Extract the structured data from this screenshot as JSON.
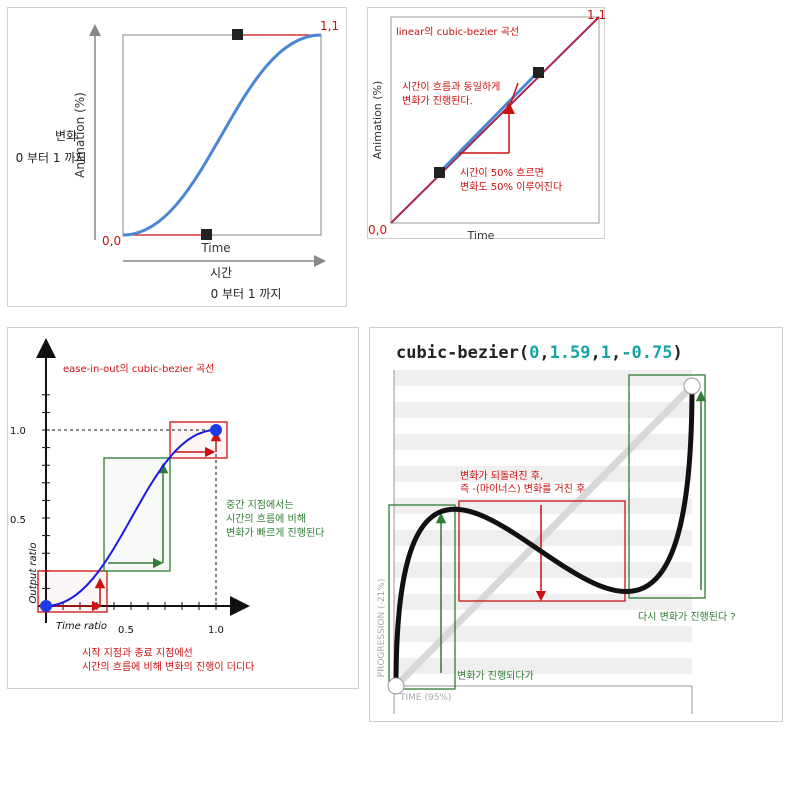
{
  "p1": {
    "y_label": "Animation (%)",
    "x_label": "Time",
    "left_label_1": "변화",
    "left_label_2": "0 부터 1 까지",
    "bottom_label_1": "시간",
    "bottom_label_2": "0 부터 1 까지",
    "origin": "0,0",
    "end": "1,1"
  },
  "p2": {
    "title": "linear의 cubic-bezier 곡선",
    "y_label": "Animation (%)",
    "x_label": "Time",
    "note_top_1": "시간이 흐름과 동일하게",
    "note_top_2": "변화가 진행된다.",
    "note_mid_1": "시간이 50% 흐르면",
    "note_mid_2": "변화도 50% 이루어진다",
    "origin": "0,0",
    "end": "1,1"
  },
  "p3": {
    "title": "ease-in-out의 cubic-bezier 곡선",
    "y_axis": "Output ratio",
    "x_axis": "Time ratio",
    "y_ticks": [
      "1.0",
      "0.5"
    ],
    "x_ticks": [
      "0.5",
      "1.0"
    ],
    "note_mid_1": "중간 지점에서는",
    "note_mid_2": "시간의 흐름에 비해",
    "note_mid_3": "변화가 빠르게 진행된다",
    "note_bottom_1": "시작 지점과 종료 지점에선",
    "note_bottom_2": "시간의 흐름에 비해 변화의 진행이 더디다"
  },
  "p4": {
    "title_prefix": "cubic-bezier(",
    "v1": "0",
    "v2": "1.59",
    "v3": "1",
    "v4": "-0.75",
    "title_suffix": ")",
    "note_mid_1": "변화가 되돌려진 후,",
    "note_mid_2": "즉 -(마이너스) 변화를 거친 후",
    "note_right": "다시 변화가 진행된다 ?",
    "note_left": "변화가 진행되다가",
    "y_axis": "PROGRESSION (-21%)",
    "x_axis": "TIME (95%)"
  },
  "colors": {
    "red": "#cc1111",
    "blue": "#4a86d4",
    "green": "#2e7d32",
    "teal": "#1aa3a3"
  }
}
